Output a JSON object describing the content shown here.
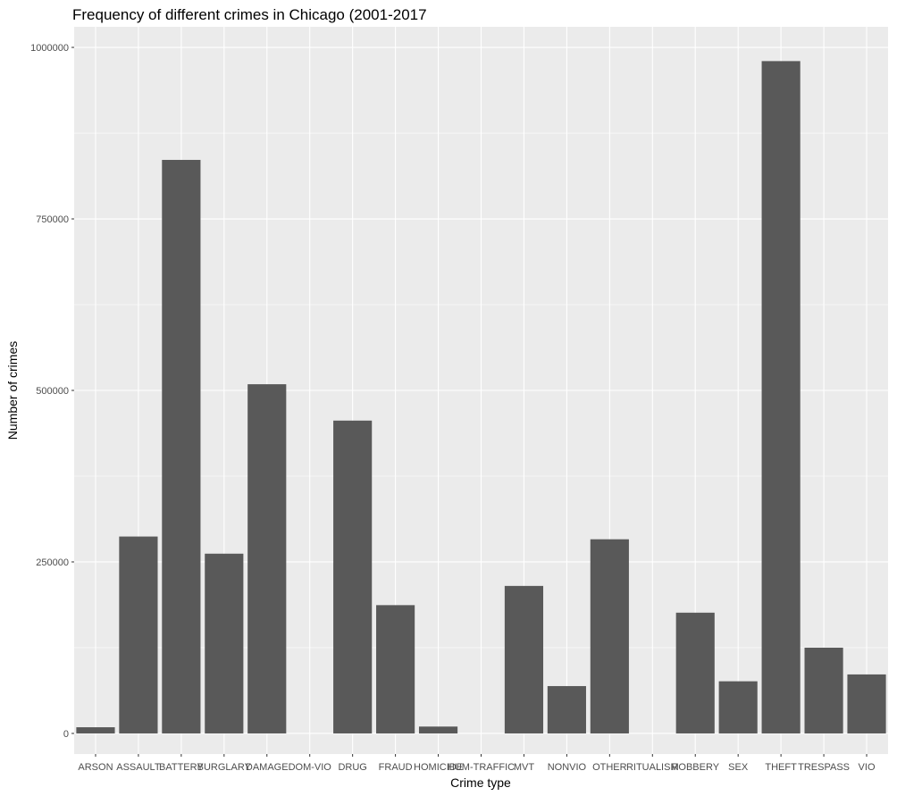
{
  "chart_data": {
    "type": "bar",
    "title": "Frequency of different crimes in Chicago (2001-2017",
    "xlabel": "Crime type",
    "ylabel": "Number of crimes",
    "categories": [
      "ARSON",
      "ASSAULT",
      "BATTERY",
      "BURGLARY",
      "DAMAGE",
      "DOM-VIO",
      "DRUG",
      "FRAUD",
      "HOMICIDE",
      "HUM-TRAFFIC",
      "MVT",
      "NONVIO",
      "OTHER",
      "RITUALISM",
      "ROBBERY",
      "SEX",
      "THEFT",
      "TRESPASS",
      "VIO"
    ],
    "values": [
      9000,
      287000,
      836000,
      262000,
      509000,
      0,
      456000,
      187000,
      10000,
      0,
      215000,
      69000,
      283000,
      0,
      176000,
      76000,
      980000,
      125000,
      86000
    ],
    "ylim": [
      -30000,
      1030000
    ],
    "yticks": [
      0,
      250000,
      500000,
      750000,
      1000000
    ],
    "ytick_labels": [
      "0",
      "250000",
      "500000",
      "750000",
      "1000000"
    ],
    "bar_color": "#595959",
    "panel_color": "#ebebeb",
    "grid": true,
    "legend": "none"
  }
}
